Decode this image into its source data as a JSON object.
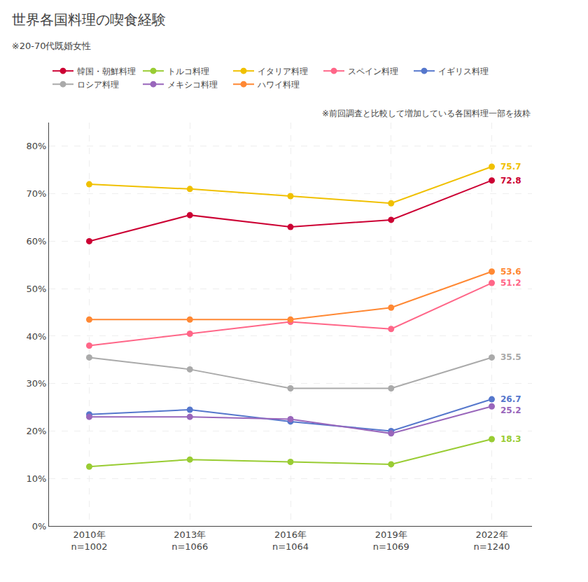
{
  "chart_data": {
    "type": "line",
    "title": "世界各国料理の喫食経験",
    "subtitle": "※20-70代既婚女性",
    "annotations": [
      "※前回調査と比較して増加している各国料理一部を抜粋"
    ],
    "categories": [
      "2010年\nn=1002",
      "2013年\nn=1066",
      "2016年\nn=1064",
      "2019年\nn=1069",
      "2022年\nn=1240"
    ],
    "series": [
      {
        "name": "韓国・朝鮮料理",
        "color": "#cc0033",
        "values": [
          60.0,
          65.5,
          63.0,
          64.5,
          72.8
        ],
        "value_labels": [
          null,
          null,
          null,
          null,
          "72.8"
        ]
      },
      {
        "name": "トルコ料理",
        "color": "#99cc33",
        "values": [
          12.5,
          14.0,
          13.5,
          13.0,
          18.3
        ],
        "value_labels": [
          null,
          null,
          null,
          null,
          "18.3"
        ]
      },
      {
        "name": "イタリア料理",
        "color": "#f0c000",
        "values": [
          72.0,
          71.0,
          69.5,
          68.0,
          75.7
        ],
        "value_labels": [
          null,
          null,
          null,
          null,
          "75.7"
        ]
      },
      {
        "name": "スペイン料理",
        "color": "#ff6688",
        "values": [
          38.0,
          40.5,
          43.0,
          41.5,
          51.2
        ],
        "value_labels": [
          null,
          null,
          null,
          null,
          "51.2"
        ]
      },
      {
        "name": "イギリス料理",
        "color": "#5577cc",
        "values": [
          23.5,
          24.5,
          22.0,
          20.0,
          26.7
        ],
        "value_labels": [
          null,
          null,
          null,
          null,
          "26.7"
        ]
      },
      {
        "name": "ロシア料理",
        "color": "#aaaaaa",
        "values": [
          35.5,
          33.0,
          29.0,
          29.0,
          35.5
        ],
        "value_labels": [
          null,
          null,
          null,
          null,
          "35.5"
        ]
      },
      {
        "name": "メキシコ料理",
        "color": "#9966bb",
        "values": [
          23.0,
          23.0,
          22.5,
          19.5,
          25.2
        ],
        "value_labels": [
          null,
          null,
          null,
          null,
          "25.2"
        ]
      },
      {
        "name": "ハワイ料理",
        "color": "#ff8833",
        "values": [
          43.5,
          43.5,
          43.5,
          46.0,
          53.6
        ],
        "value_labels": [
          null,
          null,
          null,
          null,
          "53.6"
        ]
      }
    ],
    "ylim": [
      0,
      85
    ],
    "yticks": [
      {
        "value": 0,
        "label": "0%"
      },
      {
        "value": 10,
        "label": "10%"
      },
      {
        "value": 20,
        "label": "20%"
      },
      {
        "value": 30,
        "label": "30%"
      },
      {
        "value": 40,
        "label": "40%"
      },
      {
        "value": 50,
        "label": "50%"
      },
      {
        "value": 60,
        "label": "60%"
      },
      {
        "value": 70,
        "label": "70%"
      },
      {
        "value": 80,
        "label": "80%"
      }
    ],
    "grid": true,
    "legend": "top",
    "data_labels": true,
    "marker": "circle",
    "line_style": "solid"
  }
}
